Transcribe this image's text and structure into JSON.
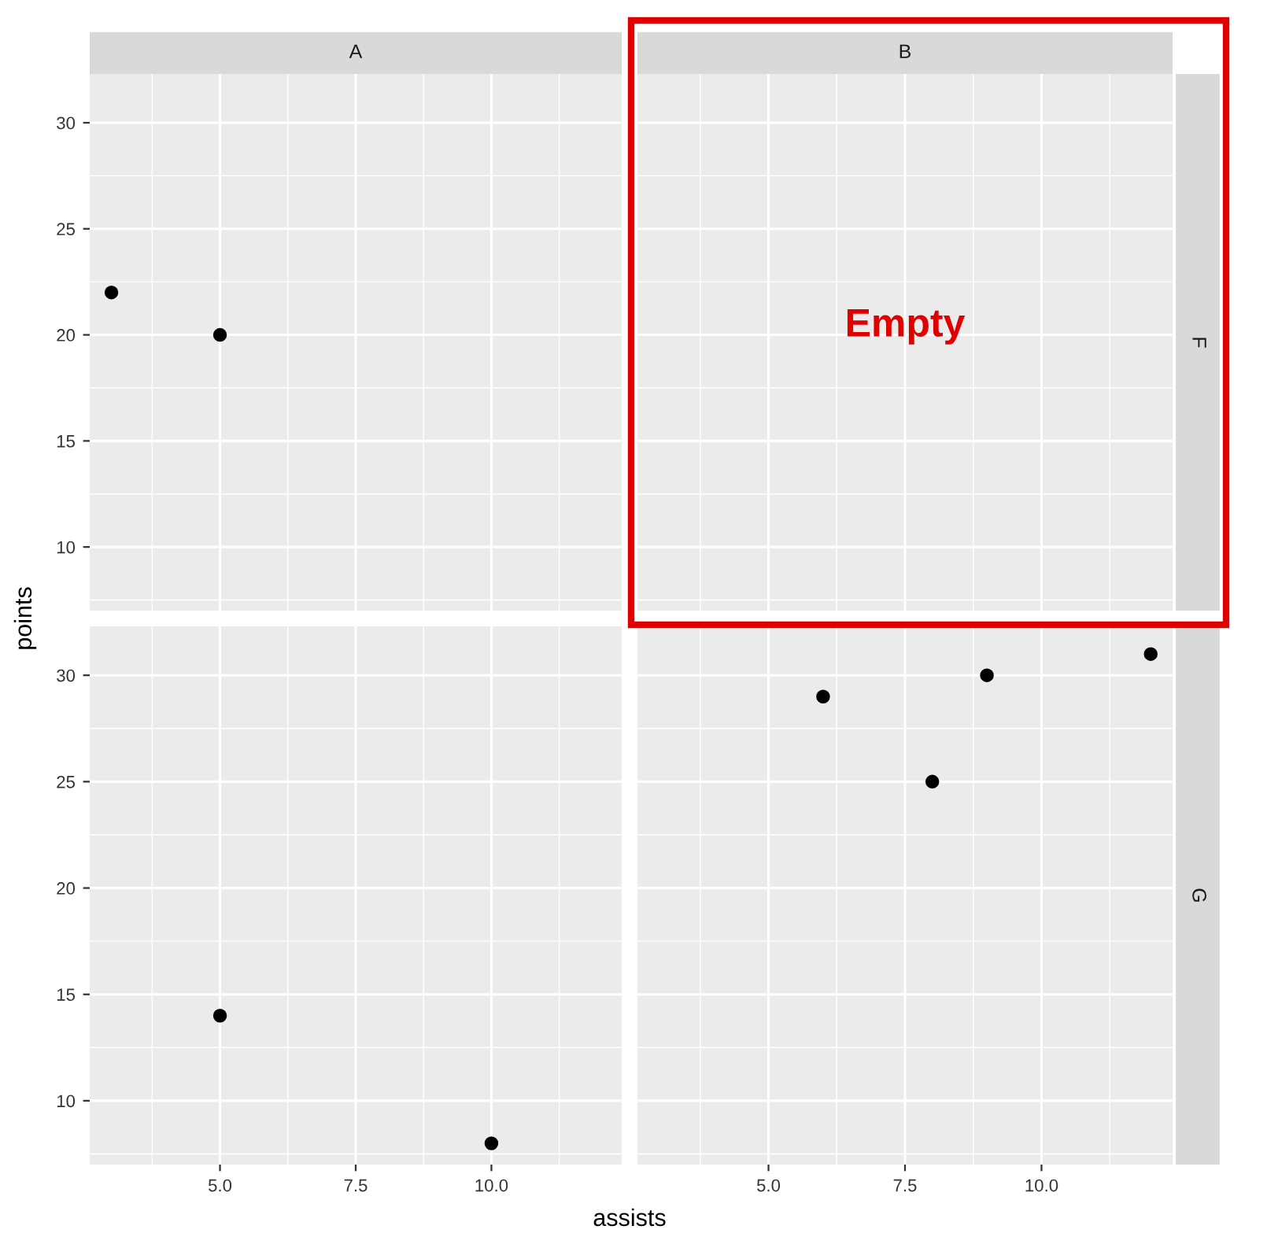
{
  "chart_data": [
    {
      "type": "scatter",
      "title": "A",
      "ylabel": "points",
      "x": [
        3,
        5
      ],
      "values": [
        22,
        20
      ],
      "color": "#000000",
      "marker": "circle",
      "xlim": [
        2.6,
        12.4
      ],
      "ylim": [
        7.0,
        32.3
      ],
      "xticks": [
        5.0,
        7.5,
        10.0
      ],
      "yticks": [
        10,
        15,
        20,
        25,
        30
      ],
      "grid": true,
      "tick_labels": "y"
    },
    {
      "type": "scatter",
      "title": "B",
      "y2label": "F",
      "annotations": [
        "Empty"
      ],
      "xlim": [
        2.6,
        12.4
      ],
      "ylim": [
        7.0,
        32.3
      ],
      "xticks": [
        5.0,
        7.5,
        10.0
      ],
      "yticks": [
        10,
        15,
        20,
        25,
        30
      ],
      "grid": true,
      "tick_labels": false
    },
    {
      "type": "scatter",
      "x": [
        5,
        10
      ],
      "values": [
        14,
        8
      ],
      "color": "#000000",
      "marker": "circle",
      "xlim": [
        2.6,
        12.4
      ],
      "ylim": [
        7.0,
        32.3
      ],
      "xticks": [
        {
          "value": 5.0,
          "label": "5.0"
        },
        {
          "value": 7.5,
          "label": "7.5"
        },
        {
          "value": 10.0,
          "label": "10.0"
        }
      ],
      "yticks": [
        10,
        15,
        20,
        25,
        30
      ],
      "grid": true
    },
    {
      "type": "scatter",
      "xlabel": "assists",
      "y2label": "G",
      "x": [
        6,
        8,
        9,
        12
      ],
      "values": [
        29,
        25,
        30,
        31
      ],
      "color": "#000000",
      "marker": "circle",
      "xlim": [
        2.6,
        12.4
      ],
      "ylim": [
        7.0,
        32.3
      ],
      "xticks": [
        {
          "value": 5.0,
          "label": "5.0"
        },
        {
          "value": 7.5,
          "label": "7.5"
        },
        {
          "value": 10.0,
          "label": "10.0"
        }
      ],
      "yticks": [
        10,
        15,
        20,
        25,
        30
      ],
      "grid": true,
      "tick_labels": "x"
    }
  ]
}
